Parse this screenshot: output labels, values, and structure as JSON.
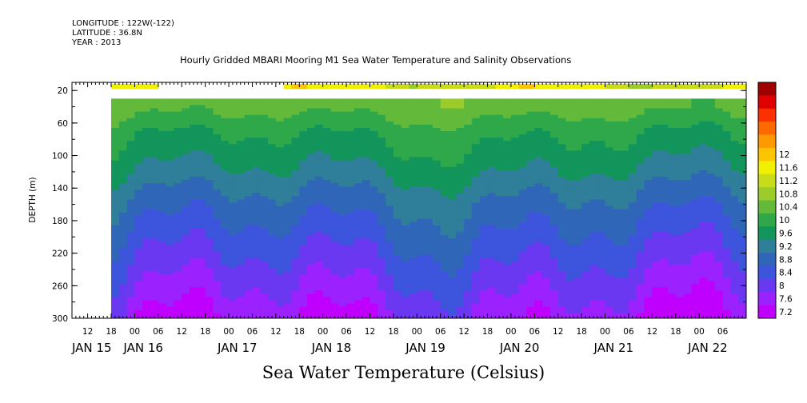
{
  "meta": {
    "longitude": "LONGITUDE : 122W(-122)",
    "latitude": "LATITUDE : 36.8N",
    "year": "YEAR : 2013"
  },
  "title": "Hourly Gridded MBARI Mooring M1 Sea Water Temperature and Salinity Observations",
  "xlabel": "Sea Water Temperature (Celsius)",
  "chart_data": {
    "type": "heatmap",
    "ylabel": "DEPTH (m)",
    "y_ticks": [
      20,
      60,
      100,
      140,
      180,
      220,
      260,
      300
    ],
    "ylim": [
      300,
      10
    ],
    "xlim": [
      "JAN 15 08:00",
      "JAN 22 12:00"
    ],
    "hour_ticks": [
      "12",
      "18",
      "00",
      "06",
      "12",
      "18",
      "00",
      "06",
      "12",
      "18",
      "00",
      "06",
      "12",
      "18",
      "00",
      "06",
      "12",
      "18",
      "00",
      "06",
      "12",
      "18",
      "00",
      "06",
      "12",
      "18",
      "00",
      "06"
    ],
    "day_labels": [
      "JAN 15",
      "JAN 16",
      "JAN 17",
      "JAN 18",
      "JAN 19",
      "JAN 20",
      "JAN 21",
      "JAN 22"
    ],
    "colorbar_labels": [
      "12",
      "11.6",
      "11.2",
      "10.8",
      "10.4",
      "10",
      "9.6",
      "9.2",
      "8.8",
      "8.4",
      "8",
      "7.6",
      "7.2"
    ],
    "levels": [
      7.2,
      7.6,
      8.0,
      8.4,
      8.8,
      9.2,
      9.6,
      10.0,
      10.4,
      10.8,
      11.2,
      11.6,
      12.0
    ],
    "colors": [
      "#bf00ff",
      "#9b22ff",
      "#6a38f0",
      "#3c55dc",
      "#2f66b8",
      "#2f7f9a",
      "#12955a",
      "#2fa84a",
      "#62b93a",
      "#9ccc2a",
      "#c8dc1a",
      "#f0f000",
      "#ffc400",
      "#ff9900",
      "#ff6a00",
      "#ff3000",
      "#e00000",
      "#a00000"
    ],
    "depth_profile": [
      {
        "depth": 40,
        "t": 10.4
      },
      {
        "depth": 70,
        "t": 9.9
      },
      {
        "depth": 110,
        "t": 9.5
      },
      {
        "depth": 150,
        "t": 9.0
      },
      {
        "depth": 190,
        "t": 8.6
      },
      {
        "depth": 230,
        "t": 8.2
      },
      {
        "depth": 270,
        "t": 7.8
      },
      {
        "depth": 300,
        "t": 7.5
      }
    ],
    "surface_band": {
      "depth_top": 12,
      "depth_bottom": 18,
      "t": 11.4
    },
    "gaps": [
      [
        "JAN 15 08:00",
        "JAN 15 18:00"
      ]
    ],
    "surface_gaps": [
      [
        "JAN 16 05:00",
        "JAN 17 15:00"
      ]
    ]
  }
}
